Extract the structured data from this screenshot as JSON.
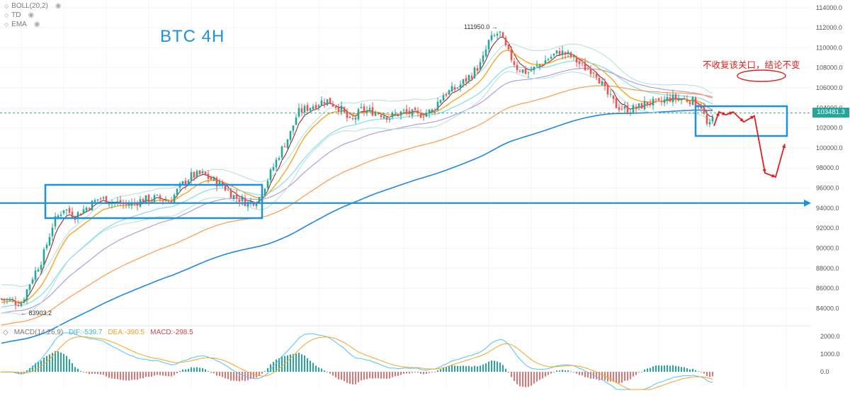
{
  "legend": {
    "boll": "BOLL(20,2)",
    "td": "TD",
    "ema": "EMA"
  },
  "macd": {
    "label": "MACD(14,26,9)",
    "dif": "DIF:-539.7",
    "dea": "DEA:-390.5",
    "macd": "MACD:-298.5",
    "axis_ticks": [
      "2000.0",
      "1000.0",
      "0.0"
    ]
  },
  "title": "BTC    4H",
  "annotation": "不收复该关口，结论不变",
  "current_price": "103481.3",
  "colors": {
    "up": "#26a69a",
    "down": "#ef5350",
    "accent": "#1e90e0",
    "annotation": "#e02020",
    "dif": "#4fc3f7",
    "dea": "#f5a623",
    "macd_down": "#e57373"
  },
  "chart_data": {
    "type": "line",
    "title": "BTC    4H",
    "xlabel": "",
    "ylabel": "",
    "ylim": [
      82400,
      114200
    ],
    "y_ticks": [
      "114000.0",
      "112000.0",
      "110000.0",
      "108000.0",
      "106000.0",
      "104000.0",
      "102000.0",
      "100000.0",
      "98000.0",
      "96000.0",
      "94000.0",
      "92000.0",
      "90000.0",
      "88000.0",
      "86000.0",
      "84000.0"
    ],
    "high_label": "111950.0",
    "low_label": "83903.2",
    "horizontal_level": 94500,
    "current_price": 103481.3,
    "price_path": [
      [
        0,
        85000
      ],
      [
        30,
        84500
      ],
      [
        45,
        87000
      ],
      [
        60,
        89000
      ],
      [
        75,
        92500
      ],
      [
        90,
        94000
      ],
      [
        105,
        93200
      ],
      [
        125,
        94200
      ],
      [
        140,
        95000
      ],
      [
        160,
        94600
      ],
      [
        180,
        94300
      ],
      [
        200,
        94800
      ],
      [
        220,
        95000
      ],
      [
        240,
        94700
      ],
      [
        255,
        96200
      ],
      [
        270,
        97200
      ],
      [
        285,
        97400
      ],
      [
        300,
        96800
      ],
      [
        315,
        96200
      ],
      [
        330,
        95200
      ],
      [
        350,
        94500
      ],
      [
        365,
        94900
      ],
      [
        380,
        97200
      ],
      [
        395,
        99500
      ],
      [
        410,
        101500
      ],
      [
        420,
        103500
      ],
      [
        440,
        104200
      ],
      [
        460,
        104800
      ],
      [
        480,
        104000
      ],
      [
        495,
        102500
      ],
      [
        510,
        103800
      ],
      [
        530,
        103600
      ],
      [
        550,
        103100
      ],
      [
        570,
        103600
      ],
      [
        590,
        103300
      ],
      [
        610,
        103700
      ],
      [
        625,
        105300
      ],
      [
        645,
        106000
      ],
      [
        665,
        107300
      ],
      [
        680,
        108500
      ],
      [
        690,
        110600
      ],
      [
        705,
        111600
      ],
      [
        715,
        109800
      ],
      [
        730,
        108000
      ],
      [
        745,
        107500
      ],
      [
        760,
        108200
      ],
      [
        775,
        109000
      ],
      [
        790,
        109600
      ],
      [
        805,
        109200
      ],
      [
        825,
        108000
      ],
      [
        840,
        107700
      ],
      [
        855,
        105600
      ],
      [
        870,
        104200
      ],
      [
        885,
        103800
      ],
      [
        900,
        104000
      ],
      [
        915,
        104600
      ],
      [
        930,
        104400
      ],
      [
        945,
        105000
      ],
      [
        960,
        104900
      ],
      [
        975,
        104800
      ],
      [
        990,
        104200
      ],
      [
        1000,
        101800
      ],
      [
        1008,
        103300
      ]
    ],
    "forecast_path": [
      [
        1008,
        102200
      ],
      [
        1015,
        103600
      ],
      [
        1025,
        103300
      ],
      [
        1035,
        103600
      ],
      [
        1050,
        102600
      ],
      [
        1065,
        103200
      ],
      [
        1080,
        97500
      ],
      [
        1095,
        97100
      ],
      [
        1108,
        100400
      ]
    ]
  }
}
